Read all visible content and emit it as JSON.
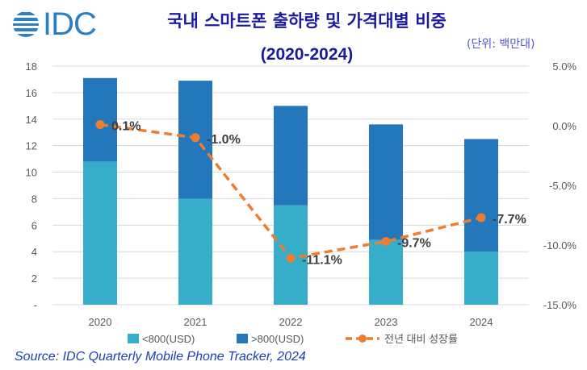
{
  "logo": {
    "text": "IDC",
    "color": "#2b7fc3"
  },
  "header": {
    "title": "국내 스마트폰 출하량 및 가격대별 비중",
    "subtitle": "(2020-2024)",
    "unit": "(단위: 백만대)"
  },
  "source": "Source: IDC Quarterly Mobile Phone Tracker, 2024",
  "chart_data": {
    "type": "bar",
    "stacked": true,
    "categories": [
      "2020",
      "2021",
      "2022",
      "2023",
      "2024"
    ],
    "series": [
      {
        "name": "<800(USD)",
        "type": "bar",
        "axis": "left",
        "color": "#36adc9",
        "values": [
          10.8,
          8.0,
          7.5,
          4.9,
          4.0
        ]
      },
      {
        "name": ">800(USD)",
        "type": "bar",
        "axis": "left",
        "color": "#2477bb",
        "values": [
          6.3,
          8.9,
          7.5,
          8.7,
          8.5
        ]
      },
      {
        "name": "전년 대비 성장률",
        "type": "line",
        "style": "dashed",
        "axis": "right",
        "color": "#ed7d31",
        "values": [
          0.1,
          -1.0,
          -11.1,
          -9.7,
          -7.7
        ],
        "labels": [
          "0.1%",
          "-1.0%",
          "-11.1%",
          "-9.7%",
          "-7.7%"
        ]
      }
    ],
    "y_left": {
      "ylim": [
        0,
        18
      ],
      "ticks": [
        "-",
        "2",
        "4",
        "6",
        "8",
        "10",
        "12",
        "14",
        "16",
        "18"
      ]
    },
    "y_right": {
      "ylim": [
        -15,
        5
      ],
      "ticks": [
        "-15.0%",
        "-10.0%",
        "-5.0%",
        "0.0%",
        "5.0%"
      ]
    },
    "grid": true,
    "legend": "bottom"
  }
}
